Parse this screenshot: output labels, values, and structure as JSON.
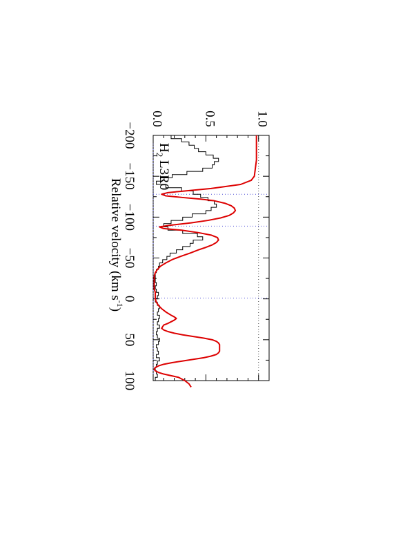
{
  "chart_data": {
    "type": "line",
    "orientation": "rotated-90-clockwise",
    "panel_label": {
      "species": "H",
      "subscript": "2",
      "transition": " L3R0"
    },
    "xlabel": {
      "prefix": "Relative velocity (km s",
      "superscript": "-1",
      "suffix": ")"
    },
    "ylabel": "",
    "xlim": [
      -200,
      110
    ],
    "ylim": [
      0.0,
      1.1
    ],
    "x_ticks": [
      -200,
      -150,
      -100,
      -50,
      0,
      50,
      100
    ],
    "x_tick_labels": [
      "−200",
      "−150",
      "−100",
      "−50",
      "0",
      "50",
      "100"
    ],
    "y_ticks": [
      0.0,
      0.5,
      1.0
    ],
    "y_tick_labels": [
      "0.0",
      "0.5",
      "1.0"
    ],
    "reference_lines": {
      "continuum": 1.0,
      "zero": 0.0
    },
    "velocity_markers": [
      -128,
      -89,
      -1
    ],
    "colors": {
      "data": "#000000",
      "model": "#dd0000",
      "continuum": "#444444",
      "markers": "#4b4bd6"
    },
    "series": [
      {
        "style": "histogram",
        "x": [
          -200,
          -196,
          -192,
          -188,
          -184,
          -180,
          -176,
          -172,
          -168,
          -164,
          -160,
          -156,
          -152,
          -148,
          -144,
          -140,
          -136,
          -132,
          -128,
          -124,
          -120,
          -116,
          -112,
          -108,
          -104,
          -100,
          -96,
          -92,
          -88,
          -84,
          -80,
          -76,
          -72,
          -68,
          -64,
          -60,
          -56,
          -52,
          -48,
          -44,
          -40,
          -36,
          -32,
          -28,
          -24,
          -20,
          -16,
          -12,
          -8,
          -4,
          0,
          4,
          8,
          12,
          16,
          20,
          24,
          28,
          32,
          36,
          40,
          44,
          48,
          52,
          56,
          60,
          64,
          68,
          72,
          76,
          80,
          84,
          88,
          92,
          96,
          100
        ],
        "y": [
          0.17,
          0.27,
          0.34,
          0.39,
          0.43,
          0.5,
          0.57,
          0.62,
          0.58,
          0.56,
          0.47,
          0.32,
          0.18,
          0.07,
          0.03,
          0.12,
          0.27,
          0.38,
          0.45,
          0.52,
          0.58,
          0.6,
          0.55,
          0.5,
          0.37,
          0.28,
          0.17,
          0.1,
          0.14,
          0.28,
          0.42,
          0.47,
          0.38,
          0.35,
          0.28,
          0.22,
          0.16,
          0.13,
          0.09,
          0.06,
          0.05,
          0.03,
          0.02,
          0.02,
          0.02,
          0.03,
          0.02,
          0.03,
          0.05,
          0.04,
          0.02,
          0.04,
          0.06,
          0.05,
          0.04,
          0.06,
          0.05,
          0.04,
          0.06,
          0.04,
          0.03,
          0.04,
          0.06,
          0.05,
          0.03,
          0.04,
          0.05,
          0.03,
          0.06,
          0.04,
          0.03,
          0.02,
          0.03,
          0.04,
          0.02,
          0.03
        ]
      },
      {
        "style": "line",
        "x": [
          -200,
          -170,
          -150,
          -145,
          -140,
          -135,
          -132,
          -130,
          -128,
          -126,
          -124,
          -122,
          -120,
          -117,
          -114,
          -111,
          -108,
          -105,
          -102,
          -99,
          -96,
          -93,
          -90,
          -88,
          -86,
          -84,
          -81,
          -78,
          -75,
          -72,
          -69,
          -66,
          -63,
          -60,
          -56,
          -52,
          -48,
          -44,
          -40,
          -36,
          -32,
          -28,
          -24,
          -20,
          -16,
          -12,
          -8,
          -4,
          0,
          4,
          8,
          12,
          16,
          20,
          22,
          24,
          26,
          28,
          30,
          32,
          34,
          36,
          38,
          40,
          42,
          44,
          46,
          48,
          50,
          52,
          54,
          56,
          58,
          60,
          62,
          64,
          66,
          68,
          70,
          72,
          74,
          76,
          78,
          80,
          82,
          84,
          86,
          88,
          90,
          92,
          94,
          96,
          100,
          104,
          108
        ],
        "y": [
          0.98,
          0.98,
          0.96,
          0.93,
          0.83,
          0.55,
          0.3,
          0.14,
          0.08,
          0.12,
          0.28,
          0.45,
          0.58,
          0.68,
          0.74,
          0.77,
          0.78,
          0.76,
          0.72,
          0.64,
          0.52,
          0.36,
          0.16,
          0.06,
          0.1,
          0.27,
          0.43,
          0.55,
          0.61,
          0.62,
          0.6,
          0.56,
          0.5,
          0.43,
          0.35,
          0.26,
          0.18,
          0.12,
          0.07,
          0.04,
          0.02,
          0.01,
          0.01,
          0.01,
          0.01,
          0.01,
          0.02,
          0.02,
          0.02,
          0.03,
          0.05,
          0.08,
          0.12,
          0.17,
          0.2,
          0.22,
          0.2,
          0.17,
          0.14,
          0.1,
          0.09,
          0.08,
          0.1,
          0.14,
          0.2,
          0.28,
          0.38,
          0.48,
          0.56,
          0.6,
          0.62,
          0.63,
          0.63,
          0.63,
          0.63,
          0.63,
          0.62,
          0.6,
          0.55,
          0.48,
          0.38,
          0.28,
          0.18,
          0.1,
          0.05,
          0.02,
          0.01,
          0.02,
          0.05,
          0.1,
          0.17,
          0.24,
          0.3,
          0.34,
          0.36
        ]
      }
    ]
  }
}
